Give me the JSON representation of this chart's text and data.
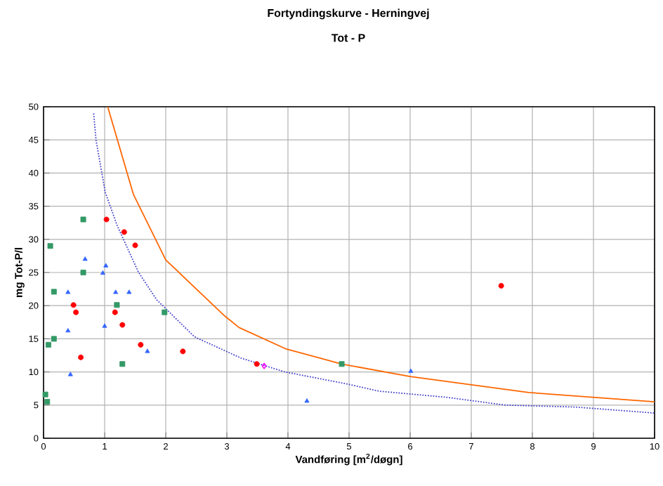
{
  "chart_data": {
    "type": "scatter",
    "title": "Fortyndingskurve - Herningvej",
    "subtitle": "Tot - P",
    "xlabel": "Vandføring [m$^{2}$/døgn]",
    "ylabel": "mg Tot-P/l",
    "xlim": [
      0,
      10
    ],
    "ylim": [
      0,
      50
    ],
    "xticks": [
      0,
      1,
      2,
      3,
      4,
      5,
      6,
      7,
      8,
      9,
      10
    ],
    "yticks": [
      0,
      5,
      10,
      15,
      20,
      25,
      30,
      35,
      40,
      45,
      50
    ],
    "grid": true,
    "series": [
      {
        "marker": "circle",
        "color": "#ff0000",
        "x": [
          1.03,
          1.32,
          1.5,
          0.49,
          0.53,
          1.17,
          1.29,
          1.59,
          0.61,
          2.28,
          3.49,
          7.49
        ],
        "values": [
          33,
          31.1,
          29.1,
          20.1,
          19,
          19,
          17.1,
          14.1,
          12.2,
          13.1,
          11.2,
          23
        ]
      },
      {
        "marker": "square",
        "color": "#339966",
        "x": [
          0.65,
          0.11,
          0.65,
          0.17,
          1.2,
          1.98,
          0.17,
          0.08,
          1.29,
          0.03,
          0.06,
          4.88
        ],
        "values": [
          33,
          29,
          25,
          22.1,
          20.1,
          19,
          15,
          14.1,
          11.2,
          6.6,
          5.5,
          11.2
        ]
      },
      {
        "marker": "triangle",
        "color": "#3366ff",
        "x": [
          0.68,
          1.02,
          0.97,
          0.4,
          1.18,
          1.4,
          0.4,
          1.0,
          1.7,
          0.44,
          4.31,
          6.01
        ],
        "values": [
          27,
          26,
          24.9,
          22,
          22,
          22,
          16.2,
          16.9,
          13.1,
          9.6,
          5.6,
          10.1
        ]
      },
      {
        "marker": "diamond",
        "color": "#ff00ff",
        "x": [
          3.61
        ],
        "values": [
          10.9
        ]
      },
      {
        "type": "line",
        "marker": "none",
        "line_style": "solid",
        "color": "#ff6600",
        "x": [
          1.05,
          1.47,
          2.0,
          2.97,
          3.2,
          3.96,
          4.88,
          6.0,
          7.94,
          10
        ],
        "values": [
          50,
          36.8,
          26.9,
          18.4,
          16.7,
          13.5,
          11.2,
          9.3,
          6.9,
          5.5
        ]
      },
      {
        "type": "line",
        "marker": "none",
        "line_style": "dotted",
        "color": "#4444cc",
        "x": [
          0.82,
          0.86,
          1.01,
          1.2,
          1.55,
          1.85,
          2.47,
          3.23,
          3.95,
          4.96,
          5.49,
          6.57,
          7.56,
          8.71,
          10
        ],
        "values": [
          49,
          44.9,
          37.1,
          32.2,
          25.1,
          20.9,
          15.3,
          12.1,
          10,
          8.2,
          7.1,
          6.2,
          5,
          4.7,
          3.8
        ]
      }
    ]
  }
}
